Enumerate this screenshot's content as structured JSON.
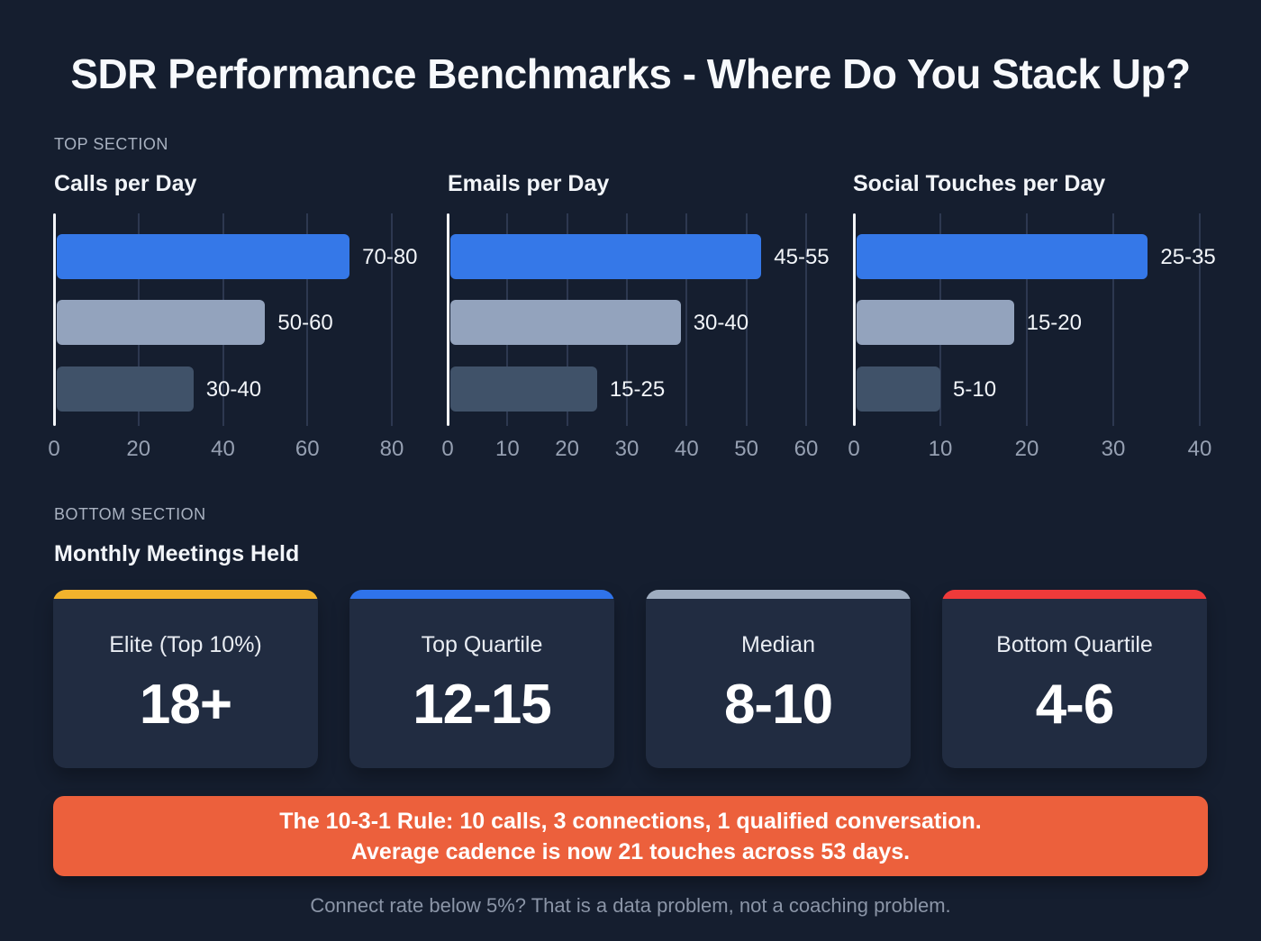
{
  "page": {
    "title": "SDR Performance Benchmarks - Where Do You Stack Up?",
    "top_section_label": "TOP SECTION",
    "bottom_section_label": "BOTTOM SECTION",
    "bottom_heading": "Monthly Meetings Held",
    "footer_note": "Connect rate below 5%? That is a data problem, not a coaching problem."
  },
  "colors": {
    "background": "#151e2f",
    "card_background": "#212c41",
    "bar_blue": "#3578e8",
    "bar_light_gray": "#93a3bd",
    "bar_dark_gray": "#405269",
    "grid_line": "#2d3850",
    "axis_line": "#f4f6f9",
    "tick_text": "#96a0b2",
    "banner_orange": "#ec603c",
    "accent_yellow": "#f2b32c",
    "accent_blue": "#2f73ea",
    "accent_gray": "#9fadc0",
    "accent_red": "#ee3a3a"
  },
  "chart_data": [
    {
      "type": "bar",
      "orientation": "horizontal",
      "title": "Calls per Day",
      "xlim": [
        0,
        80
      ],
      "xticks": [
        0,
        20,
        40,
        60,
        80
      ],
      "grid": true,
      "bars": [
        {
          "label": "70-80",
          "value": 70,
          "color": "#3578e8"
        },
        {
          "label": "50-60",
          "value": 50,
          "color": "#93a3bd"
        },
        {
          "label": "30-40",
          "value": 33,
          "color": "#405269"
        }
      ]
    },
    {
      "type": "bar",
      "orientation": "horizontal",
      "title": "Emails per Day",
      "xlim": [
        0,
        60
      ],
      "xticks": [
        0,
        10,
        20,
        30,
        40,
        50,
        60
      ],
      "grid": true,
      "bars": [
        {
          "label": "45-55",
          "value": 52.5,
          "color": "#3578e8"
        },
        {
          "label": "30-40",
          "value": 39,
          "color": "#93a3bd"
        },
        {
          "label": "15-25",
          "value": 25,
          "color": "#405269"
        }
      ]
    },
    {
      "type": "bar",
      "orientation": "horizontal",
      "title": "Social Touches per Day",
      "xlim": [
        0,
        40
      ],
      "xticks": [
        0,
        10,
        20,
        30,
        40
      ],
      "grid": true,
      "bars": [
        {
          "label": "25-35",
          "value": 34,
          "color": "#3578e8"
        },
        {
          "label": "15-20",
          "value": 18.5,
          "color": "#93a3bd"
        },
        {
          "label": "5-10",
          "value": 10,
          "color": "#405269"
        }
      ]
    }
  ],
  "meeting_cards": [
    {
      "label": "Elite (Top 10%)",
      "value": "18+",
      "accent": "#f2b32c"
    },
    {
      "label": "Top Quartile",
      "value": "12-15",
      "accent": "#2f73ea"
    },
    {
      "label": "Median",
      "value": "8-10",
      "accent": "#9fadc0"
    },
    {
      "label": "Bottom Quartile",
      "value": "4-6",
      "accent": "#ee3a3a"
    }
  ],
  "banner": {
    "line1": "The 10-3-1 Rule: 10 calls, 3 connections, 1 qualified conversation.",
    "line2": "Average cadence is now 21 touches across 53 days."
  }
}
